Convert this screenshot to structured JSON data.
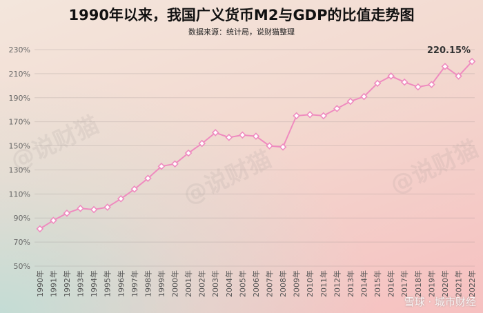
{
  "header": {
    "title": "1990年以来，我国广义货币M2与GDP的比值走势图",
    "subtitle": "数据来源：统计局，说财猫整理"
  },
  "watermark": {
    "text": "@说财猫"
  },
  "footer": {
    "credit": "雪球 · 城市财经"
  },
  "chart_data": {
    "type": "line",
    "title": "1990年以来，我国广义货币M2与GDP的比值走势图",
    "subtitle": "数据来源：统计局，说财猫整理",
    "xlabel": "",
    "ylabel": "",
    "categories": [
      "1990年",
      "1991年",
      "1992年",
      "1993年",
      "1994年",
      "1995年",
      "1996年",
      "1997年",
      "1998年",
      "1999年",
      "2000年",
      "2001年",
      "2002年",
      "2003年",
      "2004年",
      "2005年",
      "2006年",
      "2007年",
      "2008年",
      "2009年",
      "2010年",
      "2011年",
      "2012年",
      "2013年",
      "2014年",
      "2015年",
      "2016年",
      "2017年",
      "2018年",
      "2019年",
      "2020年",
      "2021年",
      "2022年"
    ],
    "series": [
      {
        "values": [
          81,
          88,
          94,
          98,
          97,
          99,
          106,
          114,
          123,
          133,
          135,
          144,
          152,
          161,
          157,
          159,
          158,
          150,
          149,
          175,
          176,
          175,
          181,
          187,
          191,
          202,
          208,
          203,
          199,
          201,
          216,
          208,
          220.15
        ]
      }
    ],
    "yticks": [
      "50%",
      "70%",
      "90%",
      "110%",
      "130%",
      "150%",
      "170%",
      "190%",
      "210%",
      "230%"
    ],
    "ylim": [
      50,
      230
    ],
    "annotations": [
      {
        "label": "220.15%",
        "category": "2022年"
      }
    ],
    "line_color": "#ef8bbf",
    "marker_fill": "#ffffff",
    "grid": true,
    "legend": "none"
  }
}
